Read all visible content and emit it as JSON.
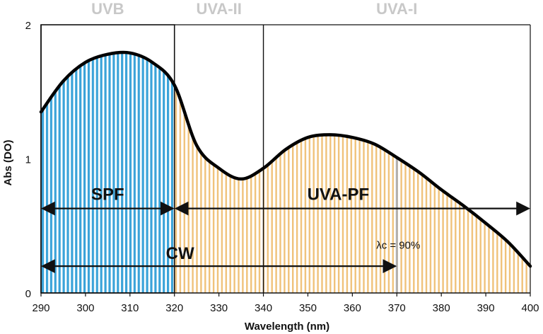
{
  "chart_data": {
    "type": "area",
    "title": "",
    "xlabel": "Wavelength (nm)",
    "ylabel": "Abs (DO)",
    "xlim": [
      290,
      400
    ],
    "ylim": [
      0,
      2
    ],
    "x_ticks": [
      290,
      300,
      310,
      320,
      330,
      340,
      350,
      360,
      370,
      380,
      390,
      400
    ],
    "y_ticks": [
      0,
      1,
      2
    ],
    "grid": false,
    "bands": [
      {
        "name": "UVB",
        "from": 290,
        "to": 320
      },
      {
        "name": "UVA-II",
        "from": 320,
        "to": 340
      },
      {
        "name": "UVA-I",
        "from": 340,
        "to": 400
      }
    ],
    "series": [
      {
        "name": "Absorbance",
        "x": [
          290,
          295,
          300,
          305,
          310,
          315,
          320,
          325,
          330,
          335,
          340,
          345,
          350,
          355,
          360,
          365,
          370,
          375,
          380,
          385,
          390,
          395,
          400
        ],
        "values": [
          1.35,
          1.58,
          1.72,
          1.78,
          1.79,
          1.72,
          1.55,
          1.1,
          0.93,
          0.85,
          0.93,
          1.07,
          1.16,
          1.18,
          1.16,
          1.11,
          1.01,
          0.9,
          0.77,
          0.65,
          0.52,
          0.38,
          0.2
        ]
      }
    ],
    "fills": [
      {
        "name": "UVB fill",
        "from": 290,
        "to": 320,
        "color": "#3aa3d9"
      },
      {
        "name": "UVA fill",
        "from": 320,
        "to": 400,
        "color": "#f0c27a"
      }
    ],
    "annotations": [
      {
        "label": "SPF",
        "from": 290,
        "to": 320,
        "y": 0.63
      },
      {
        "label": "UVA-PF",
        "from": 320,
        "to": 400,
        "y": 0.63
      },
      {
        "label": "CW",
        "from": 290,
        "to": 370,
        "y": 0.2
      },
      {
        "label": "λc = 90%",
        "x": 370
      }
    ]
  },
  "colors": {
    "curve": "#000000",
    "uvb": "#3aa3d9",
    "uva": "#f0c27a",
    "critical": "#b0b0b0"
  }
}
